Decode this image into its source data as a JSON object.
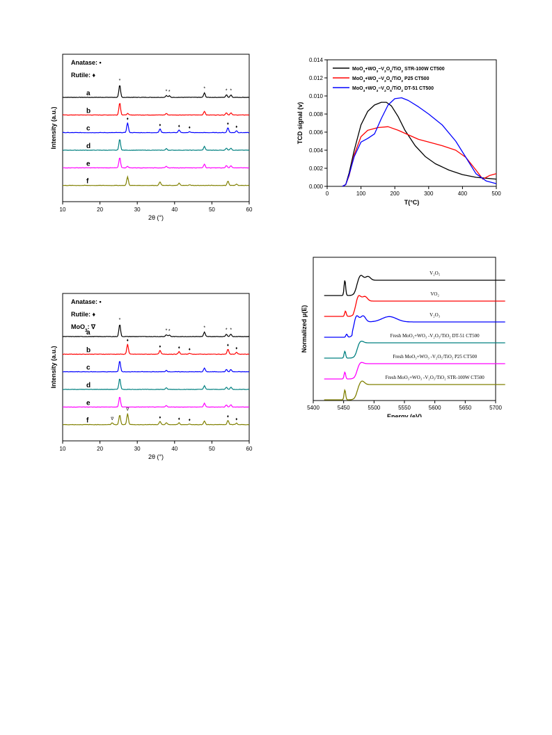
{
  "colors": {
    "black": "#000000",
    "red": "#ff0000",
    "blue": "#0000ff",
    "teal": "#008080",
    "magenta": "#ff00ff",
    "olive": "#808000"
  },
  "chart_data": [
    {
      "type": "line",
      "panel": "xrd-top",
      "xlabel": "2θ (°)",
      "ylabel": "Intensity (a.u.)",
      "xlim": [
        10,
        60
      ],
      "xticks": [
        "10",
        "20",
        "30",
        "40",
        "50",
        "60"
      ],
      "legend_lines": [
        "Anatase: •",
        "Rutile: ♦"
      ],
      "series": [
        {
          "name": "a",
          "color": "#000000",
          "peaks": [
            [
              25.3,
              1.0
            ],
            [
              37.8,
              0.15
            ],
            [
              38.6,
              0.12
            ],
            [
              48.0,
              0.35
            ],
            [
              53.9,
              0.2
            ],
            [
              55.1,
              0.2
            ]
          ]
        },
        {
          "name": "b",
          "color": "#ff0000",
          "peaks": [
            [
              25.3,
              1.0
            ],
            [
              27.4,
              0.12
            ],
            [
              37.8,
              0.12
            ],
            [
              48.0,
              0.3
            ],
            [
              53.9,
              0.18
            ],
            [
              55.1,
              0.18
            ]
          ]
        },
        {
          "name": "c",
          "color": "#0000ff",
          "peaks": [
            [
              27.4,
              0.8
            ],
            [
              36.1,
              0.3
            ],
            [
              41.2,
              0.2
            ],
            [
              44.0,
              0.08
            ],
            [
              54.3,
              0.4
            ],
            [
              56.6,
              0.15
            ]
          ]
        },
        {
          "name": "d",
          "color": "#008080",
          "peaks": [
            [
              25.3,
              0.9
            ],
            [
              37.8,
              0.12
            ],
            [
              48.0,
              0.3
            ],
            [
              53.9,
              0.18
            ],
            [
              55.1,
              0.18
            ]
          ]
        },
        {
          "name": "e",
          "color": "#ff00ff",
          "peaks": [
            [
              25.3,
              0.85
            ],
            [
              27.4,
              0.12
            ],
            [
              37.8,
              0.12
            ],
            [
              48.0,
              0.3
            ],
            [
              53.9,
              0.18
            ],
            [
              55.1,
              0.18
            ]
          ]
        },
        {
          "name": "f",
          "color": "#808000",
          "peaks": [
            [
              27.4,
              0.7
            ],
            [
              36.1,
              0.3
            ],
            [
              41.2,
              0.18
            ],
            [
              44.0,
              0.06
            ],
            [
              54.3,
              0.35
            ],
            [
              56.6,
              0.12
            ]
          ]
        }
      ],
      "markers": [
        {
          "series": "a",
          "x": 25.3,
          "symbol": "*"
        },
        {
          "series": "a",
          "x": 37.8,
          "symbol": "*"
        },
        {
          "series": "a",
          "x": 38.6,
          "symbol": "*"
        },
        {
          "series": "a",
          "x": 48.0,
          "symbol": "*"
        },
        {
          "series": "a",
          "x": 53.9,
          "symbol": "*"
        },
        {
          "series": "a",
          "x": 55.1,
          "symbol": "*"
        },
        {
          "series": "c",
          "x": 27.4,
          "symbol": "♦"
        },
        {
          "series": "c",
          "x": 36.1,
          "symbol": "♦"
        },
        {
          "series": "c",
          "x": 41.2,
          "symbol": "♦"
        },
        {
          "series": "c",
          "x": 44.0,
          "symbol": "♦"
        },
        {
          "series": "c",
          "x": 54.3,
          "symbol": "♦"
        },
        {
          "series": "c",
          "x": 56.6,
          "symbol": "♦"
        }
      ]
    },
    {
      "type": "line",
      "panel": "tpd",
      "xlabel": "T(°C)",
      "ylabel": "TCD signal (v)",
      "xlim": [
        0,
        500
      ],
      "ylim": [
        0,
        0.014
      ],
      "xticks": [
        "0",
        "100",
        "200",
        "300",
        "400",
        "500"
      ],
      "yticks": [
        "0.000",
        "0.002",
        "0.004",
        "0.006",
        "0.008",
        "0.010",
        "0.012",
        "0.014"
      ],
      "series": [
        {
          "name": "MoO3+WO3−V2O5/TiO2 STR-100W CT500",
          "color": "#000000",
          "x": [
            45,
            55,
            65,
            80,
            100,
            120,
            140,
            160,
            175,
            190,
            210,
            230,
            260,
            290,
            320,
            360,
            400,
            440,
            470,
            500
          ],
          "y": [
            0.0,
            0.0002,
            0.0015,
            0.004,
            0.0068,
            0.0083,
            0.009,
            0.0093,
            0.0093,
            0.0089,
            0.0077,
            0.0062,
            0.0045,
            0.0033,
            0.0025,
            0.0018,
            0.0013,
            0.001,
            0.0009,
            0.0008
          ]
        },
        {
          "name": "MoO3+WO3−V2O5/TiO2 P25 CT500",
          "color": "#ff0000",
          "x": [
            45,
            55,
            65,
            80,
            100,
            120,
            150,
            180,
            210,
            240,
            270,
            300,
            340,
            380,
            410,
            440,
            460,
            480,
            500
          ],
          "y": [
            0.0,
            0.0002,
            0.0012,
            0.0035,
            0.0055,
            0.0062,
            0.0065,
            0.0066,
            0.0062,
            0.0057,
            0.0052,
            0.0049,
            0.0045,
            0.004,
            0.0032,
            0.0018,
            0.0008,
            0.0012,
            0.0014
          ]
        },
        {
          "name": "MoO3+WO3−V2O5/TiO2 DT-51 CT500",
          "color": "#0000ff",
          "x": [
            45,
            55,
            65,
            80,
            100,
            120,
            140,
            160,
            180,
            200,
            220,
            240,
            270,
            300,
            340,
            380,
            410,
            440,
            470,
            500
          ],
          "y": [
            0.0,
            0.0002,
            0.0013,
            0.0033,
            0.0049,
            0.0053,
            0.0058,
            0.0075,
            0.009,
            0.0097,
            0.0098,
            0.0095,
            0.0088,
            0.008,
            0.0068,
            0.005,
            0.0032,
            0.0014,
            0.0006,
            0.0003
          ]
        }
      ]
    },
    {
      "type": "line",
      "panel": "xrd-bottom",
      "xlabel": "2θ (°)",
      "ylabel": "Intensity (a.u.)",
      "xlim": [
        10,
        60
      ],
      "xticks": [
        "10",
        "20",
        "30",
        "40",
        "50",
        "60"
      ],
      "legend_lines": [
        "Anatase: •",
        "Rutile: ♦",
        "MoO3:  ∇"
      ],
      "series": [
        {
          "name": "a",
          "color": "#000000",
          "peaks": [
            [
              25.3,
              1.0
            ],
            [
              37.8,
              0.15
            ],
            [
              38.6,
              0.12
            ],
            [
              48.0,
              0.35
            ],
            [
              53.9,
              0.2
            ],
            [
              55.1,
              0.2
            ]
          ]
        },
        {
          "name": "b",
          "color": "#ff0000",
          "peaks": [
            [
              27.4,
              0.8
            ],
            [
              36.1,
              0.3
            ],
            [
              41.2,
              0.2
            ],
            [
              44.0,
              0.08
            ],
            [
              54.3,
              0.4
            ],
            [
              56.6,
              0.15
            ]
          ]
        },
        {
          "name": "c",
          "color": "#0000ff",
          "peaks": [
            [
              25.3,
              0.9
            ],
            [
              37.8,
              0.12
            ],
            [
              48.0,
              0.3
            ],
            [
              53.9,
              0.18
            ],
            [
              55.1,
              0.18
            ]
          ]
        },
        {
          "name": "d",
          "color": "#008080",
          "peaks": [
            [
              25.3,
              0.9
            ],
            [
              37.8,
              0.12
            ],
            [
              48.0,
              0.3
            ],
            [
              53.9,
              0.18
            ],
            [
              55.1,
              0.18
            ]
          ]
        },
        {
          "name": "e",
          "color": "#ff00ff",
          "peaks": [
            [
              25.3,
              0.85
            ],
            [
              37.8,
              0.12
            ],
            [
              48.0,
              0.3
            ],
            [
              53.9,
              0.18
            ],
            [
              55.1,
              0.18
            ]
          ]
        },
        {
          "name": "f",
          "color": "#808000",
          "peaks": [
            [
              23.3,
              0.15
            ],
            [
              25.3,
              0.8
            ],
            [
              27.4,
              0.9
            ],
            [
              36.1,
              0.25
            ],
            [
              37.8,
              0.15
            ],
            [
              41.2,
              0.15
            ],
            [
              44.0,
              0.06
            ],
            [
              48.0,
              0.3
            ],
            [
              54.3,
              0.35
            ],
            [
              56.6,
              0.12
            ]
          ]
        }
      ],
      "markers": [
        {
          "series": "a",
          "x": 25.3,
          "symbol": "*"
        },
        {
          "series": "a",
          "x": 37.8,
          "symbol": "*"
        },
        {
          "series": "a",
          "x": 38.6,
          "symbol": "*"
        },
        {
          "series": "a",
          "x": 48.0,
          "symbol": "*"
        },
        {
          "series": "a",
          "x": 53.9,
          "symbol": "*"
        },
        {
          "series": "a",
          "x": 55.1,
          "symbol": "*"
        },
        {
          "series": "b",
          "x": 27.4,
          "symbol": "♦"
        },
        {
          "series": "b",
          "x": 36.1,
          "symbol": "♦"
        },
        {
          "series": "b",
          "x": 41.2,
          "symbol": "♦"
        },
        {
          "series": "b",
          "x": 44.0,
          "symbol": "♦"
        },
        {
          "series": "b",
          "x": 54.3,
          "symbol": "♦"
        },
        {
          "series": "b",
          "x": 56.6,
          "symbol": "♦"
        },
        {
          "series": "f",
          "x": 23.3,
          "symbol": "∇"
        },
        {
          "series": "f",
          "x": 27.4,
          "symbol": "∇"
        },
        {
          "series": "f",
          "x": 36.1,
          "symbol": "♦"
        },
        {
          "series": "f",
          "x": 41.2,
          "symbol": "♦"
        },
        {
          "series": "f",
          "x": 44.0,
          "symbol": "♦"
        },
        {
          "series": "f",
          "x": 54.3,
          "symbol": "♦"
        },
        {
          "series": "f",
          "x": 56.6,
          "symbol": "♦"
        }
      ]
    },
    {
      "type": "line",
      "panel": "xanes",
      "xlabel": "Energy (eV)",
      "ylabel": "Normalized μ(E)",
      "xlim": [
        5400,
        5700
      ],
      "xticks": [
        "5400",
        "5450",
        "5500",
        "5550",
        "5600",
        "5650",
        "5700"
      ],
      "series": [
        {
          "name": "V2O5",
          "label": "V₂O₅",
          "color": "#000000",
          "preedge": [
            5452,
            1.0
          ],
          "edge": 5471,
          "features": [
            [
              5478,
              0.35
            ],
            [
              5490,
              0.25
            ]
          ]
        },
        {
          "name": "VO2",
          "label": "VO₂",
          "color": "#ff0000",
          "preedge": [
            5453,
            0.35
          ],
          "edge": 5470,
          "features": [
            [
              5474,
              0.45
            ],
            [
              5485,
              0.3
            ]
          ]
        },
        {
          "name": "V2O3",
          "label": "V₂O₃",
          "color": "#0000ff",
          "preedge": [
            5455,
            0.2
          ],
          "edge": 5468,
          "features": [
            [
              5470,
              0.6
            ],
            [
              5482,
              0.4
            ],
            [
              5525,
              0.35
            ]
          ]
        },
        {
          "name": "Fresh DT-51",
          "label": "Fresh MoO₃+WO₃ -V₂O₅/TiO₂ DT-51 CT500",
          "color": "#008080",
          "preedge": [
            5452,
            0.45
          ],
          "edge": 5472,
          "features": [
            [
              5478,
              0.15
            ]
          ]
        },
        {
          "name": "Fresh P25",
          "label": "Fresh MoO₃+WO₃ -V₂O₅/TiO₂ P25 CT500",
          "color": "#ff00ff",
          "preedge": [
            5452,
            0.45
          ],
          "edge": 5472,
          "features": [
            [
              5478,
              0.12
            ]
          ]
        },
        {
          "name": "Fresh STR-100W",
          "label": "Fresh MoO₃+WO₃ -V₂O₅/TiO₂ STR-100W CT500",
          "color": "#808000",
          "preedge": [
            5452,
            0.65
          ],
          "edge": 5472,
          "features": [
            [
              5480,
              0.25
            ]
          ]
        }
      ]
    }
  ]
}
